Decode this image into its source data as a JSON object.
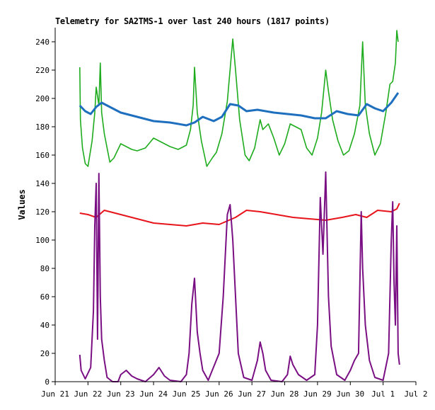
{
  "chart_data": {
    "type": "line",
    "title": "Telemetry for SA2TMS-1 over last 240 hours (1817 points)",
    "xlabel": "",
    "ylabel": "Values",
    "ylim": [
      0,
      250
    ],
    "xlim": [
      "2021-06-21 00:00",
      "2021-07-02 00:00"
    ],
    "x_ticks": [
      "Jun 21",
      "Jun 22",
      "Jun 23",
      "Jun 24",
      "Jun 25",
      "Jun 26",
      "Jun 27",
      "Jun 28",
      "Jun 29",
      "Jun 30",
      "Jul 1",
      "Jul 2"
    ],
    "y_ticks": [
      "0",
      "20",
      "40",
      "60",
      "80",
      "100",
      "120",
      "140",
      "160",
      "180",
      "200",
      "220",
      "240"
    ],
    "grid": false,
    "series": [
      {
        "color": "#1eac1e",
        "values": [
          [
            "2021-06-21 18:00",
            222
          ],
          [
            "2021-06-21 18:30",
            185
          ],
          [
            "2021-06-21 20:00",
            165
          ],
          [
            "2021-06-21 22:00",
            154
          ],
          [
            "2021-06-22 00:00",
            152
          ],
          [
            "2021-06-22 03:00",
            170
          ],
          [
            "2021-06-22 05:00",
            190
          ],
          [
            "2021-06-22 06:00",
            208
          ],
          [
            "2021-06-22 08:00",
            195
          ],
          [
            "2021-06-22 09:00",
            225
          ],
          [
            "2021-06-22 10:00",
            190
          ],
          [
            "2021-06-22 12:00",
            175
          ],
          [
            "2021-06-22 16:00",
            155
          ],
          [
            "2021-06-22 19:00",
            158
          ],
          [
            "2021-06-23 00:00",
            168
          ],
          [
            "2021-06-23 04:00",
            166
          ],
          [
            "2021-06-23 08:00",
            164
          ],
          [
            "2021-06-23 12:00",
            163
          ],
          [
            "2021-06-23 18:00",
            165
          ],
          [
            "2021-06-24 00:00",
            172
          ],
          [
            "2021-06-24 06:00",
            169
          ],
          [
            "2021-06-24 12:00",
            166
          ],
          [
            "2021-06-24 18:00",
            164
          ],
          [
            "2021-06-25 00:00",
            167
          ],
          [
            "2021-06-25 03:00",
            178
          ],
          [
            "2021-06-25 05:00",
            195
          ],
          [
            "2021-06-25 06:00",
            222
          ],
          [
            "2021-06-25 08:00",
            190
          ],
          [
            "2021-06-25 11:00",
            170
          ],
          [
            "2021-06-25 15:00",
            152
          ],
          [
            "2021-06-25 19:00",
            158
          ],
          [
            "2021-06-25 22:00",
            162
          ],
          [
            "2021-06-26 02:00",
            175
          ],
          [
            "2021-06-26 06:00",
            198
          ],
          [
            "2021-06-26 10:00",
            242
          ],
          [
            "2021-06-26 12:00",
            220
          ],
          [
            "2021-06-26 15:00",
            185
          ],
          [
            "2021-06-26 19:00",
            160
          ],
          [
            "2021-06-26 22:00",
            156
          ],
          [
            "2021-06-27 02:00",
            165
          ],
          [
            "2021-06-27 06:00",
            185
          ],
          [
            "2021-06-27 08:00",
            178
          ],
          [
            "2021-06-27 12:00",
            182
          ],
          [
            "2021-06-27 16:00",
            172
          ],
          [
            "2021-06-27 20:00",
            160
          ],
          [
            "2021-06-28 00:00",
            168
          ],
          [
            "2021-06-28 04:00",
            182
          ],
          [
            "2021-06-28 08:00",
            180
          ],
          [
            "2021-06-28 12:00",
            178
          ],
          [
            "2021-06-28 16:00",
            165
          ],
          [
            "2021-06-28 20:00",
            160
          ],
          [
            "2021-06-29 00:00",
            172
          ],
          [
            "2021-06-29 03:00",
            190
          ],
          [
            "2021-06-29 06:00",
            220
          ],
          [
            "2021-06-29 08:00",
            205
          ],
          [
            "2021-06-29 11:00",
            185
          ],
          [
            "2021-06-29 15:00",
            170
          ],
          [
            "2021-06-29 19:00",
            160
          ],
          [
            "2021-06-29 23:00",
            163
          ],
          [
            "2021-06-30 03:00",
            175
          ],
          [
            "2021-06-30 07:00",
            195
          ],
          [
            "2021-06-30 09:00",
            240
          ],
          [
            "2021-06-30 11:00",
            195
          ],
          [
            "2021-06-30 14:00",
            175
          ],
          [
            "2021-06-30 18:00",
            160
          ],
          [
            "2021-06-30 22:00",
            168
          ],
          [
            "2021-07-01 02:00",
            190
          ],
          [
            "2021-07-01 05:00",
            210
          ],
          [
            "2021-07-01 07:00",
            212
          ],
          [
            "2021-07-01 09:00",
            225
          ],
          [
            "2021-07-01 10:00",
            248
          ],
          [
            "2021-07-01 11:00",
            240
          ]
        ]
      },
      {
        "color": "#1f6fbf",
        "values": [
          [
            "2021-06-21 18:00",
            195
          ],
          [
            "2021-06-21 22:00",
            191
          ],
          [
            "2021-06-22 02:00",
            189
          ],
          [
            "2021-06-22 06:00",
            194
          ],
          [
            "2021-06-22 10:00",
            197
          ],
          [
            "2021-06-22 14:00",
            195
          ],
          [
            "2021-06-23 00:00",
            190
          ],
          [
            "2021-06-23 12:00",
            187
          ],
          [
            "2021-06-24 00:00",
            184
          ],
          [
            "2021-06-24 12:00",
            183
          ],
          [
            "2021-06-25 00:00",
            181
          ],
          [
            "2021-06-25 06:00",
            183
          ],
          [
            "2021-06-25 12:00",
            187
          ],
          [
            "2021-06-25 20:00",
            184
          ],
          [
            "2021-06-26 02:00",
            187
          ],
          [
            "2021-06-26 08:00",
            196
          ],
          [
            "2021-06-26 14:00",
            195
          ],
          [
            "2021-06-26 20:00",
            191
          ],
          [
            "2021-06-27 04:00",
            192
          ],
          [
            "2021-06-27 16:00",
            190
          ],
          [
            "2021-06-28 02:00",
            189
          ],
          [
            "2021-06-28 12:00",
            188
          ],
          [
            "2021-06-28 22:00",
            186
          ],
          [
            "2021-06-29 06:00",
            186
          ],
          [
            "2021-06-29 14:00",
            191
          ],
          [
            "2021-06-29 22:00",
            189
          ],
          [
            "2021-06-30 06:00",
            188
          ],
          [
            "2021-06-30 12:00",
            196
          ],
          [
            "2021-06-30 18:00",
            193
          ],
          [
            "2021-07-01 00:00",
            191
          ],
          [
            "2021-07-01 06:00",
            197
          ],
          [
            "2021-07-01 11:00",
            204
          ]
        ]
      },
      {
        "color": "#e8141c",
        "values": [
          [
            "2021-06-21 18:00",
            119
          ],
          [
            "2021-06-22 00:00",
            118
          ],
          [
            "2021-06-22 06:00",
            116
          ],
          [
            "2021-06-22 12:00",
            121
          ],
          [
            "2021-06-23 00:00",
            118
          ],
          [
            "2021-06-23 12:00",
            115
          ],
          [
            "2021-06-24 00:00",
            112
          ],
          [
            "2021-06-24 12:00",
            111
          ],
          [
            "2021-06-25 00:00",
            110
          ],
          [
            "2021-06-25 12:00",
            112
          ],
          [
            "2021-06-26 00:00",
            111
          ],
          [
            "2021-06-26 12:00",
            116
          ],
          [
            "2021-06-26 20:00",
            121
          ],
          [
            "2021-06-27 06:00",
            120
          ],
          [
            "2021-06-27 18:00",
            118
          ],
          [
            "2021-06-28 06:00",
            116
          ],
          [
            "2021-06-28 18:00",
            115
          ],
          [
            "2021-06-29 06:00",
            114
          ],
          [
            "2021-06-29 18:00",
            116
          ],
          [
            "2021-06-30 04:00",
            118
          ],
          [
            "2021-06-30 12:00",
            116
          ],
          [
            "2021-06-30 20:00",
            121
          ],
          [
            "2021-07-01 06:00",
            120
          ],
          [
            "2021-07-01 10:00",
            122
          ],
          [
            "2021-07-01 12:00",
            126
          ]
        ]
      },
      {
        "color": "#7a0f84",
        "values": [
          [
            "2021-06-21 18:00",
            19
          ],
          [
            "2021-06-21 19:00",
            8
          ],
          [
            "2021-06-21 22:00",
            2
          ],
          [
            "2021-06-22 02:00",
            10
          ],
          [
            "2021-06-22 04:00",
            50
          ],
          [
            "2021-06-22 05:00",
            110
          ],
          [
            "2021-06-22 06:00",
            140
          ],
          [
            "2021-06-22 07:00",
            30
          ],
          [
            "2021-06-22 08:00",
            147
          ],
          [
            "2021-06-22 09:00",
            60
          ],
          [
            "2021-06-22 10:00",
            30
          ],
          [
            "2021-06-22 12:00",
            15
          ],
          [
            "2021-06-22 14:00",
            3
          ],
          [
            "2021-06-22 18:00",
            0
          ],
          [
            "2021-06-22 22:00",
            0
          ],
          [
            "2021-06-23 00:00",
            5
          ],
          [
            "2021-06-23 04:00",
            8
          ],
          [
            "2021-06-23 08:00",
            4
          ],
          [
            "2021-06-23 12:00",
            2
          ],
          [
            "2021-06-23 18:00",
            0
          ],
          [
            "2021-06-24 00:00",
            5
          ],
          [
            "2021-06-24 04:00",
            10
          ],
          [
            "2021-06-24 08:00",
            4
          ],
          [
            "2021-06-24 12:00",
            1
          ],
          [
            "2021-06-24 20:00",
            0
          ],
          [
            "2021-06-25 00:00",
            5
          ],
          [
            "2021-06-25 02:00",
            20
          ],
          [
            "2021-06-25 04:00",
            55
          ],
          [
            "2021-06-25 06:00",
            73
          ],
          [
            "2021-06-25 08:00",
            35
          ],
          [
            "2021-06-25 10:00",
            20
          ],
          [
            "2021-06-25 12:00",
            8
          ],
          [
            "2021-06-25 16:00",
            1
          ],
          [
            "2021-06-26 00:00",
            20
          ],
          [
            "2021-06-26 03:00",
            60
          ],
          [
            "2021-06-26 06:00",
            118
          ],
          [
            "2021-06-26 08:00",
            125
          ],
          [
            "2021-06-26 10:00",
            100
          ],
          [
            "2021-06-26 12:00",
            60
          ],
          [
            "2021-06-26 14:00",
            20
          ],
          [
            "2021-06-26 18:00",
            3
          ],
          [
            "2021-06-27 00:00",
            1
          ],
          [
            "2021-06-27 04:00",
            15
          ],
          [
            "2021-06-27 06:00",
            28
          ],
          [
            "2021-06-27 08:00",
            20
          ],
          [
            "2021-06-27 10:00",
            8
          ],
          [
            "2021-06-27 14:00",
            1
          ],
          [
            "2021-06-27 22:00",
            0
          ],
          [
            "2021-06-28 02:00",
            5
          ],
          [
            "2021-06-28 04:00",
            18
          ],
          [
            "2021-06-28 06:00",
            12
          ],
          [
            "2021-06-28 10:00",
            5
          ],
          [
            "2021-06-28 16:00",
            1
          ],
          [
            "2021-06-28 22:00",
            5
          ],
          [
            "2021-06-29 00:00",
            40
          ],
          [
            "2021-06-29 02:00",
            130
          ],
          [
            "2021-06-29 04:00",
            90
          ],
          [
            "2021-06-29 06:00",
            148
          ],
          [
            "2021-06-29 08:00",
            60
          ],
          [
            "2021-06-29 10:00",
            25
          ],
          [
            "2021-06-29 14:00",
            5
          ],
          [
            "2021-06-29 20:00",
            1
          ],
          [
            "2021-06-30 00:00",
            8
          ],
          [
            "2021-06-30 03:00",
            15
          ],
          [
            "2021-06-30 06:00",
            20
          ],
          [
            "2021-06-30 08:00",
            120
          ],
          [
            "2021-06-30 09:00",
            80
          ],
          [
            "2021-06-30 11:00",
            40
          ],
          [
            "2021-06-30 14:00",
            15
          ],
          [
            "2021-06-30 18:00",
            3
          ],
          [
            "2021-07-01 00:00",
            1
          ],
          [
            "2021-07-01 04:00",
            20
          ],
          [
            "2021-07-01 06:00",
            100
          ],
          [
            "2021-07-01 07:00",
            127
          ],
          [
            "2021-07-01 08:00",
            70
          ],
          [
            "2021-07-01 09:00",
            40
          ],
          [
            "2021-07-01 10:00",
            110
          ],
          [
            "2021-07-01 11:00",
            20
          ],
          [
            "2021-07-01 12:00",
            12
          ]
        ]
      }
    ]
  }
}
